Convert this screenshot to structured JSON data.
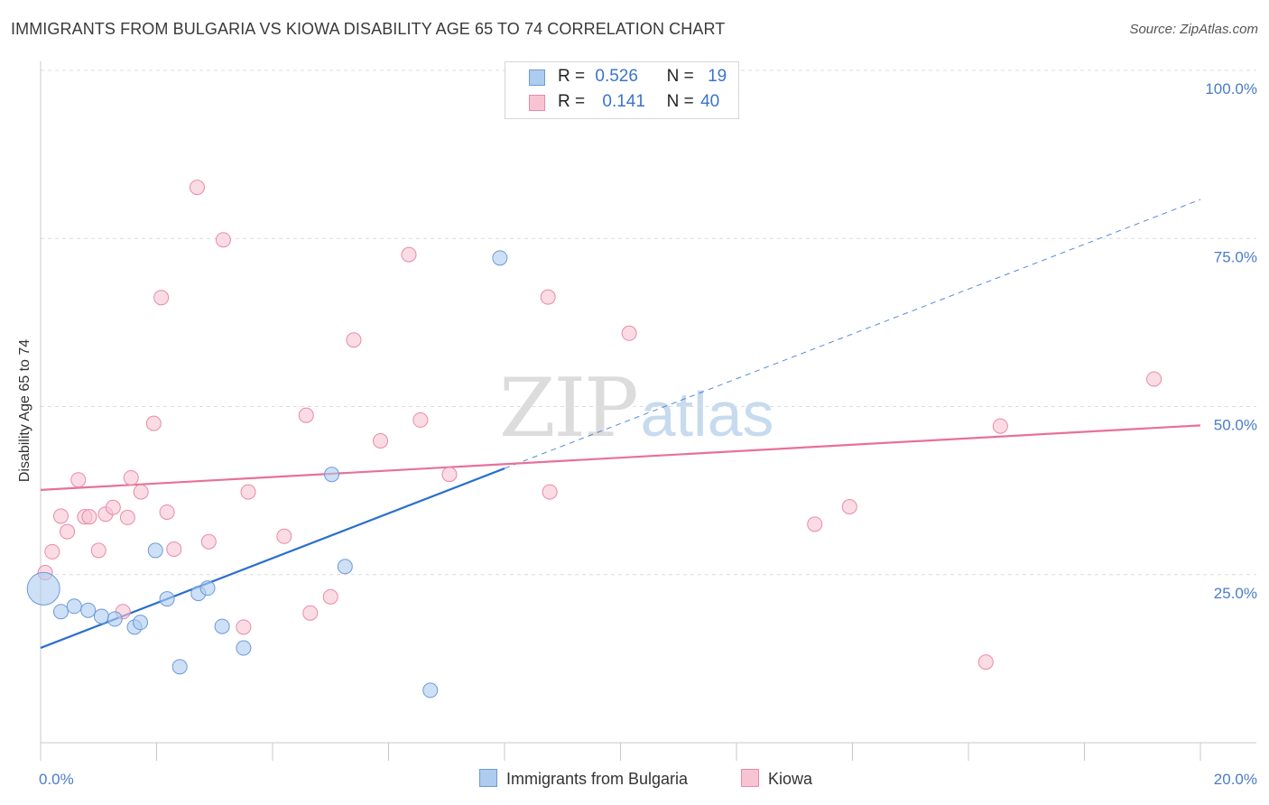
{
  "title": "IMMIGRANTS FROM BULGARIA VS KIOWA DISABILITY AGE 65 TO 74 CORRELATION CHART",
  "source": "Source: ZipAtlas.com",
  "watermark": {
    "zip": "ZIP",
    "atlas": "atlas"
  },
  "legend": {
    "rows": [
      {
        "r_label": "R =",
        "r_value": "0.526",
        "n_label": "N =",
        "n_value": "19",
        "color": "#aecbf0",
        "border": "#6b9ad8"
      },
      {
        "r_label": "R =",
        "r_value": "0.141",
        "n_label": "N =",
        "n_value": "40",
        "color": "#f8c4d4",
        "border": "#e88aa8"
      }
    ]
  },
  "bottom_legend": [
    {
      "label": "Immigrants from Bulgaria",
      "color": "#aecbf0",
      "border": "#6b9ad8"
    },
    {
      "label": "Kiowa",
      "color": "#f8c4d4",
      "border": "#e88aa8"
    }
  ],
  "chart_data": {
    "type": "scatter",
    "title": "IMMIGRANTS FROM BULGARIA VS KIOWA DISABILITY AGE 65 TO 74 CORRELATION CHART",
    "xlabel": "",
    "ylabel": "Disability Age 65 to 74",
    "xlim": [
      0,
      20
    ],
    "ylim": [
      0,
      100
    ],
    "x_ticks": [
      {
        "value": 0,
        "label": "0.0%"
      },
      {
        "value": 20,
        "label": "20.0%"
      }
    ],
    "y_ticks": [
      {
        "value": 25,
        "label": "25.0%"
      },
      {
        "value": 50,
        "label": "50.0%"
      },
      {
        "value": 75,
        "label": "75.0%"
      },
      {
        "value": 100,
        "label": "100.0%"
      }
    ],
    "grid": true,
    "series": [
      {
        "name": "Immigrants from Bulgaria",
        "color": "#aecbf0",
        "stroke": "#6b9ad8",
        "line_color": "#2a6fcf",
        "trend": {
          "x0": 0,
          "y0": 14.1,
          "x1": 8.0,
          "y1": 40.8,
          "extend_to_x": 20,
          "extend_y": 80.8
        },
        "points": [
          {
            "x": 0.05,
            "y": 22.9,
            "big": true
          },
          {
            "x": 0.35,
            "y": 19.5
          },
          {
            "x": 0.58,
            "y": 20.3
          },
          {
            "x": 0.82,
            "y": 19.7
          },
          {
            "x": 1.05,
            "y": 18.8
          },
          {
            "x": 1.28,
            "y": 18.4
          },
          {
            "x": 1.62,
            "y": 17.2
          },
          {
            "x": 1.72,
            "y": 17.9
          },
          {
            "x": 1.98,
            "y": 28.6
          },
          {
            "x": 2.18,
            "y": 21.4
          },
          {
            "x": 2.4,
            "y": 11.3
          },
          {
            "x": 2.72,
            "y": 22.2
          },
          {
            "x": 2.88,
            "y": 23.0
          },
          {
            "x": 3.13,
            "y": 17.3
          },
          {
            "x": 3.5,
            "y": 14.1
          },
          {
            "x": 5.02,
            "y": 39.9
          },
          {
            "x": 5.25,
            "y": 26.2
          },
          {
            "x": 6.72,
            "y": 7.8
          },
          {
            "x": 7.92,
            "y": 72.1
          }
        ]
      },
      {
        "name": "Kiowa",
        "color": "#f8c4d4",
        "stroke": "#e88aa8",
        "line_color": "#e8709a",
        "trend": {
          "x0": 0,
          "y0": 37.6,
          "x1": 20,
          "y1": 47.2
        },
        "points": [
          {
            "x": 0.08,
            "y": 25.3
          },
          {
            "x": 0.2,
            "y": 28.4
          },
          {
            "x": 0.35,
            "y": 33.7
          },
          {
            "x": 0.46,
            "y": 31.4
          },
          {
            "x": 0.65,
            "y": 39.1
          },
          {
            "x": 0.76,
            "y": 33.6
          },
          {
            "x": 0.84,
            "y": 33.6
          },
          {
            "x": 1.0,
            "y": 28.6
          },
          {
            "x": 1.12,
            "y": 34.0
          },
          {
            "x": 1.25,
            "y": 35.0
          },
          {
            "x": 1.42,
            "y": 19.5
          },
          {
            "x": 1.5,
            "y": 33.5
          },
          {
            "x": 1.56,
            "y": 39.4
          },
          {
            "x": 1.73,
            "y": 37.3
          },
          {
            "x": 1.95,
            "y": 47.5
          },
          {
            "x": 2.08,
            "y": 66.2
          },
          {
            "x": 2.18,
            "y": 34.3
          },
          {
            "x": 2.3,
            "y": 28.8
          },
          {
            "x": 2.7,
            "y": 82.6
          },
          {
            "x": 2.9,
            "y": 29.9
          },
          {
            "x": 3.15,
            "y": 74.8
          },
          {
            "x": 3.58,
            "y": 37.3
          },
          {
            "x": 3.5,
            "y": 17.2
          },
          {
            "x": 4.2,
            "y": 30.7
          },
          {
            "x": 4.58,
            "y": 48.7
          },
          {
            "x": 4.65,
            "y": 19.3
          },
          {
            "x": 5.0,
            "y": 21.7
          },
          {
            "x": 5.4,
            "y": 59.9
          },
          {
            "x": 5.86,
            "y": 44.9
          },
          {
            "x": 6.35,
            "y": 72.6
          },
          {
            "x": 6.55,
            "y": 48.0
          },
          {
            "x": 7.05,
            "y": 39.9
          },
          {
            "x": 8.75,
            "y": 66.3
          },
          {
            "x": 8.78,
            "y": 37.3
          },
          {
            "x": 10.15,
            "y": 60.9
          },
          {
            "x": 13.35,
            "y": 32.5
          },
          {
            "x": 13.95,
            "y": 35.1
          },
          {
            "x": 16.3,
            "y": 12.0
          },
          {
            "x": 16.55,
            "y": 47.1
          },
          {
            "x": 19.2,
            "y": 54.1
          }
        ]
      }
    ]
  }
}
